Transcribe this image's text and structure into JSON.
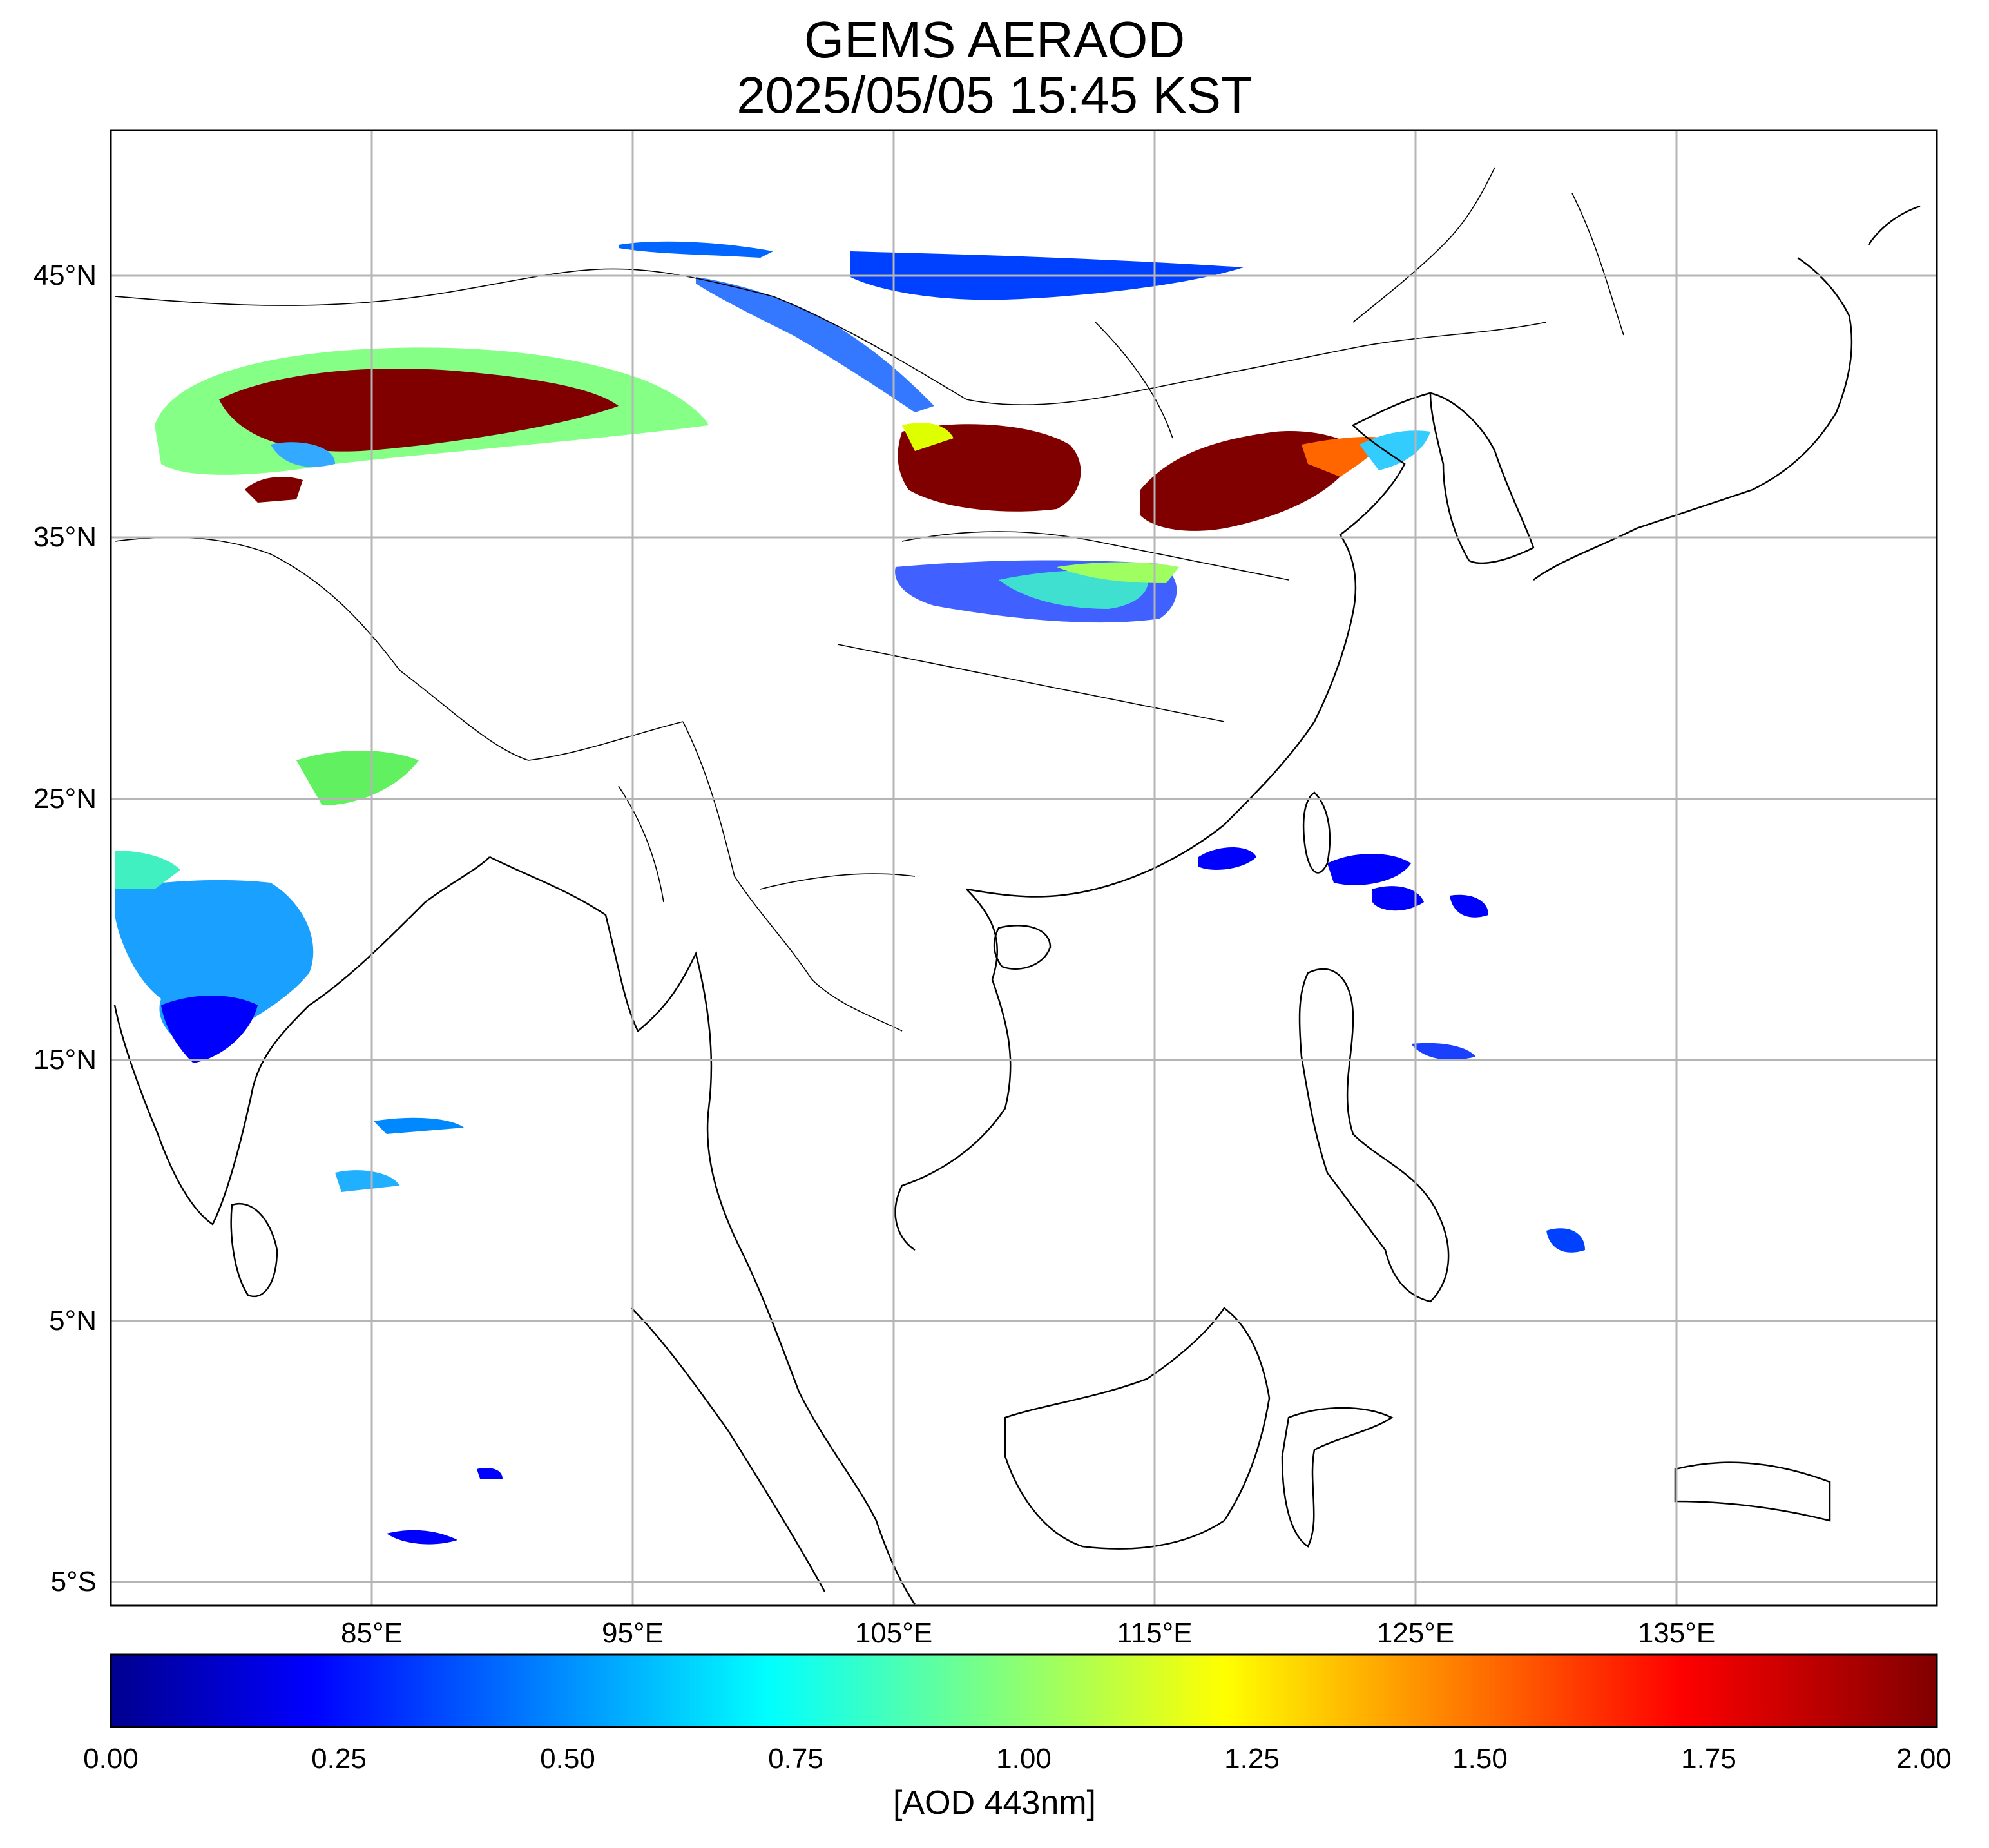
{
  "title": {
    "line1": "GEMS AERAOD",
    "line2": "2025/05/05 15:45 KST"
  },
  "map": {
    "lat_labels": [
      "45°N",
      "35°N",
      "25°N",
      "15°N",
      "5°N",
      "5°S"
    ],
    "lon_labels": [
      "85°E",
      "95°E",
      "105°E",
      "115°E",
      "125°E",
      "135°E"
    ],
    "lat_values": [
      45,
      35,
      25,
      15,
      5,
      -5
    ],
    "lon_values": [
      85,
      95,
      105,
      115,
      125,
      135
    ],
    "lon_range": [
      75,
      145
    ],
    "lat_range": [
      -6,
      50.5
    ],
    "grid": true
  },
  "colorbar": {
    "labels": [
      "0.00",
      "0.25",
      "0.50",
      "0.75",
      "1.00",
      "1.25",
      "1.50",
      "1.75",
      "2.00"
    ],
    "range": [
      0,
      2
    ],
    "title": "[AOD 443nm]",
    "colormap": "jet"
  },
  "colors": {
    "low": "#00008f",
    "blue": "#0000ff",
    "cyan": "#00ffff",
    "yellow": "#ffff00",
    "red": "#ff0000",
    "high": "#800000"
  }
}
